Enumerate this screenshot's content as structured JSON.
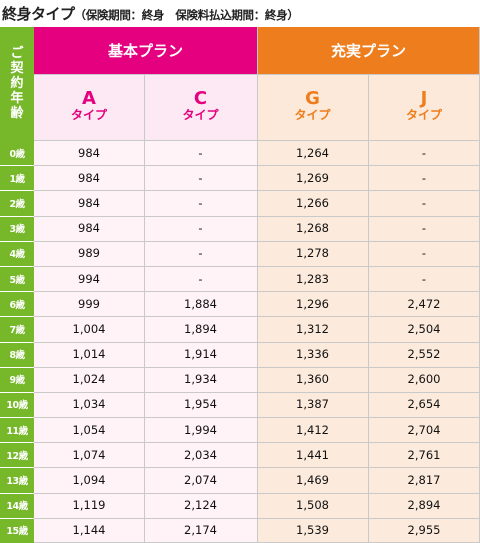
{
  "title": {
    "main": "終身タイプ",
    "sub": "（保険期間：終身　保険料払込期間：終身）"
  },
  "header": {
    "age_label": [
      "ご",
      "契",
      "約",
      "年",
      "齢"
    ],
    "plans": [
      {
        "name": "基本プラン",
        "color": "#e4007f"
      },
      {
        "name": "充実プラン",
        "color": "#ee7d1d"
      }
    ],
    "types": [
      {
        "letter": "A",
        "word": "タイプ"
      },
      {
        "letter": "C",
        "word": "タイプ"
      },
      {
        "letter": "G",
        "word": "タイプ"
      },
      {
        "letter": "J",
        "word": "タイプ"
      }
    ]
  },
  "rows": [
    {
      "age": "0歳",
      "values": [
        "984",
        "-",
        "1,264",
        "-"
      ]
    },
    {
      "age": "1歳",
      "values": [
        "984",
        "-",
        "1,269",
        "-"
      ]
    },
    {
      "age": "2歳",
      "values": [
        "984",
        "-",
        "1,266",
        "-"
      ]
    },
    {
      "age": "3歳",
      "values": [
        "984",
        "-",
        "1,268",
        "-"
      ]
    },
    {
      "age": "4歳",
      "values": [
        "989",
        "-",
        "1,278",
        "-"
      ]
    },
    {
      "age": "5歳",
      "values": [
        "994",
        "-",
        "1,283",
        "-"
      ]
    },
    {
      "age": "6歳",
      "values": [
        "999",
        "1,884",
        "1,296",
        "2,472"
      ]
    },
    {
      "age": "7歳",
      "values": [
        "1,004",
        "1,894",
        "1,312",
        "2,504"
      ]
    },
    {
      "age": "8歳",
      "values": [
        "1,014",
        "1,914",
        "1,336",
        "2,552"
      ]
    },
    {
      "age": "9歳",
      "values": [
        "1,024",
        "1,934",
        "1,360",
        "2,600"
      ]
    },
    {
      "age": "10歳",
      "values": [
        "1,034",
        "1,954",
        "1,387",
        "2,654"
      ]
    },
    {
      "age": "11歳",
      "values": [
        "1,054",
        "1,994",
        "1,412",
        "2,704"
      ]
    },
    {
      "age": "12歳",
      "values": [
        "1,074",
        "2,034",
        "1,441",
        "2,761"
      ]
    },
    {
      "age": "13歳",
      "values": [
        "1,094",
        "2,074",
        "1,469",
        "2,817"
      ]
    },
    {
      "age": "14歳",
      "values": [
        "1,119",
        "2,124",
        "1,508",
        "2,894"
      ]
    },
    {
      "age": "15歳",
      "values": [
        "1,144",
        "2,174",
        "1,539",
        "2,955"
      ]
    }
  ],
  "colors": {
    "age_green": "#77b82a",
    "basic_magenta": "#e4007f",
    "full_orange": "#ee7d1d"
  }
}
